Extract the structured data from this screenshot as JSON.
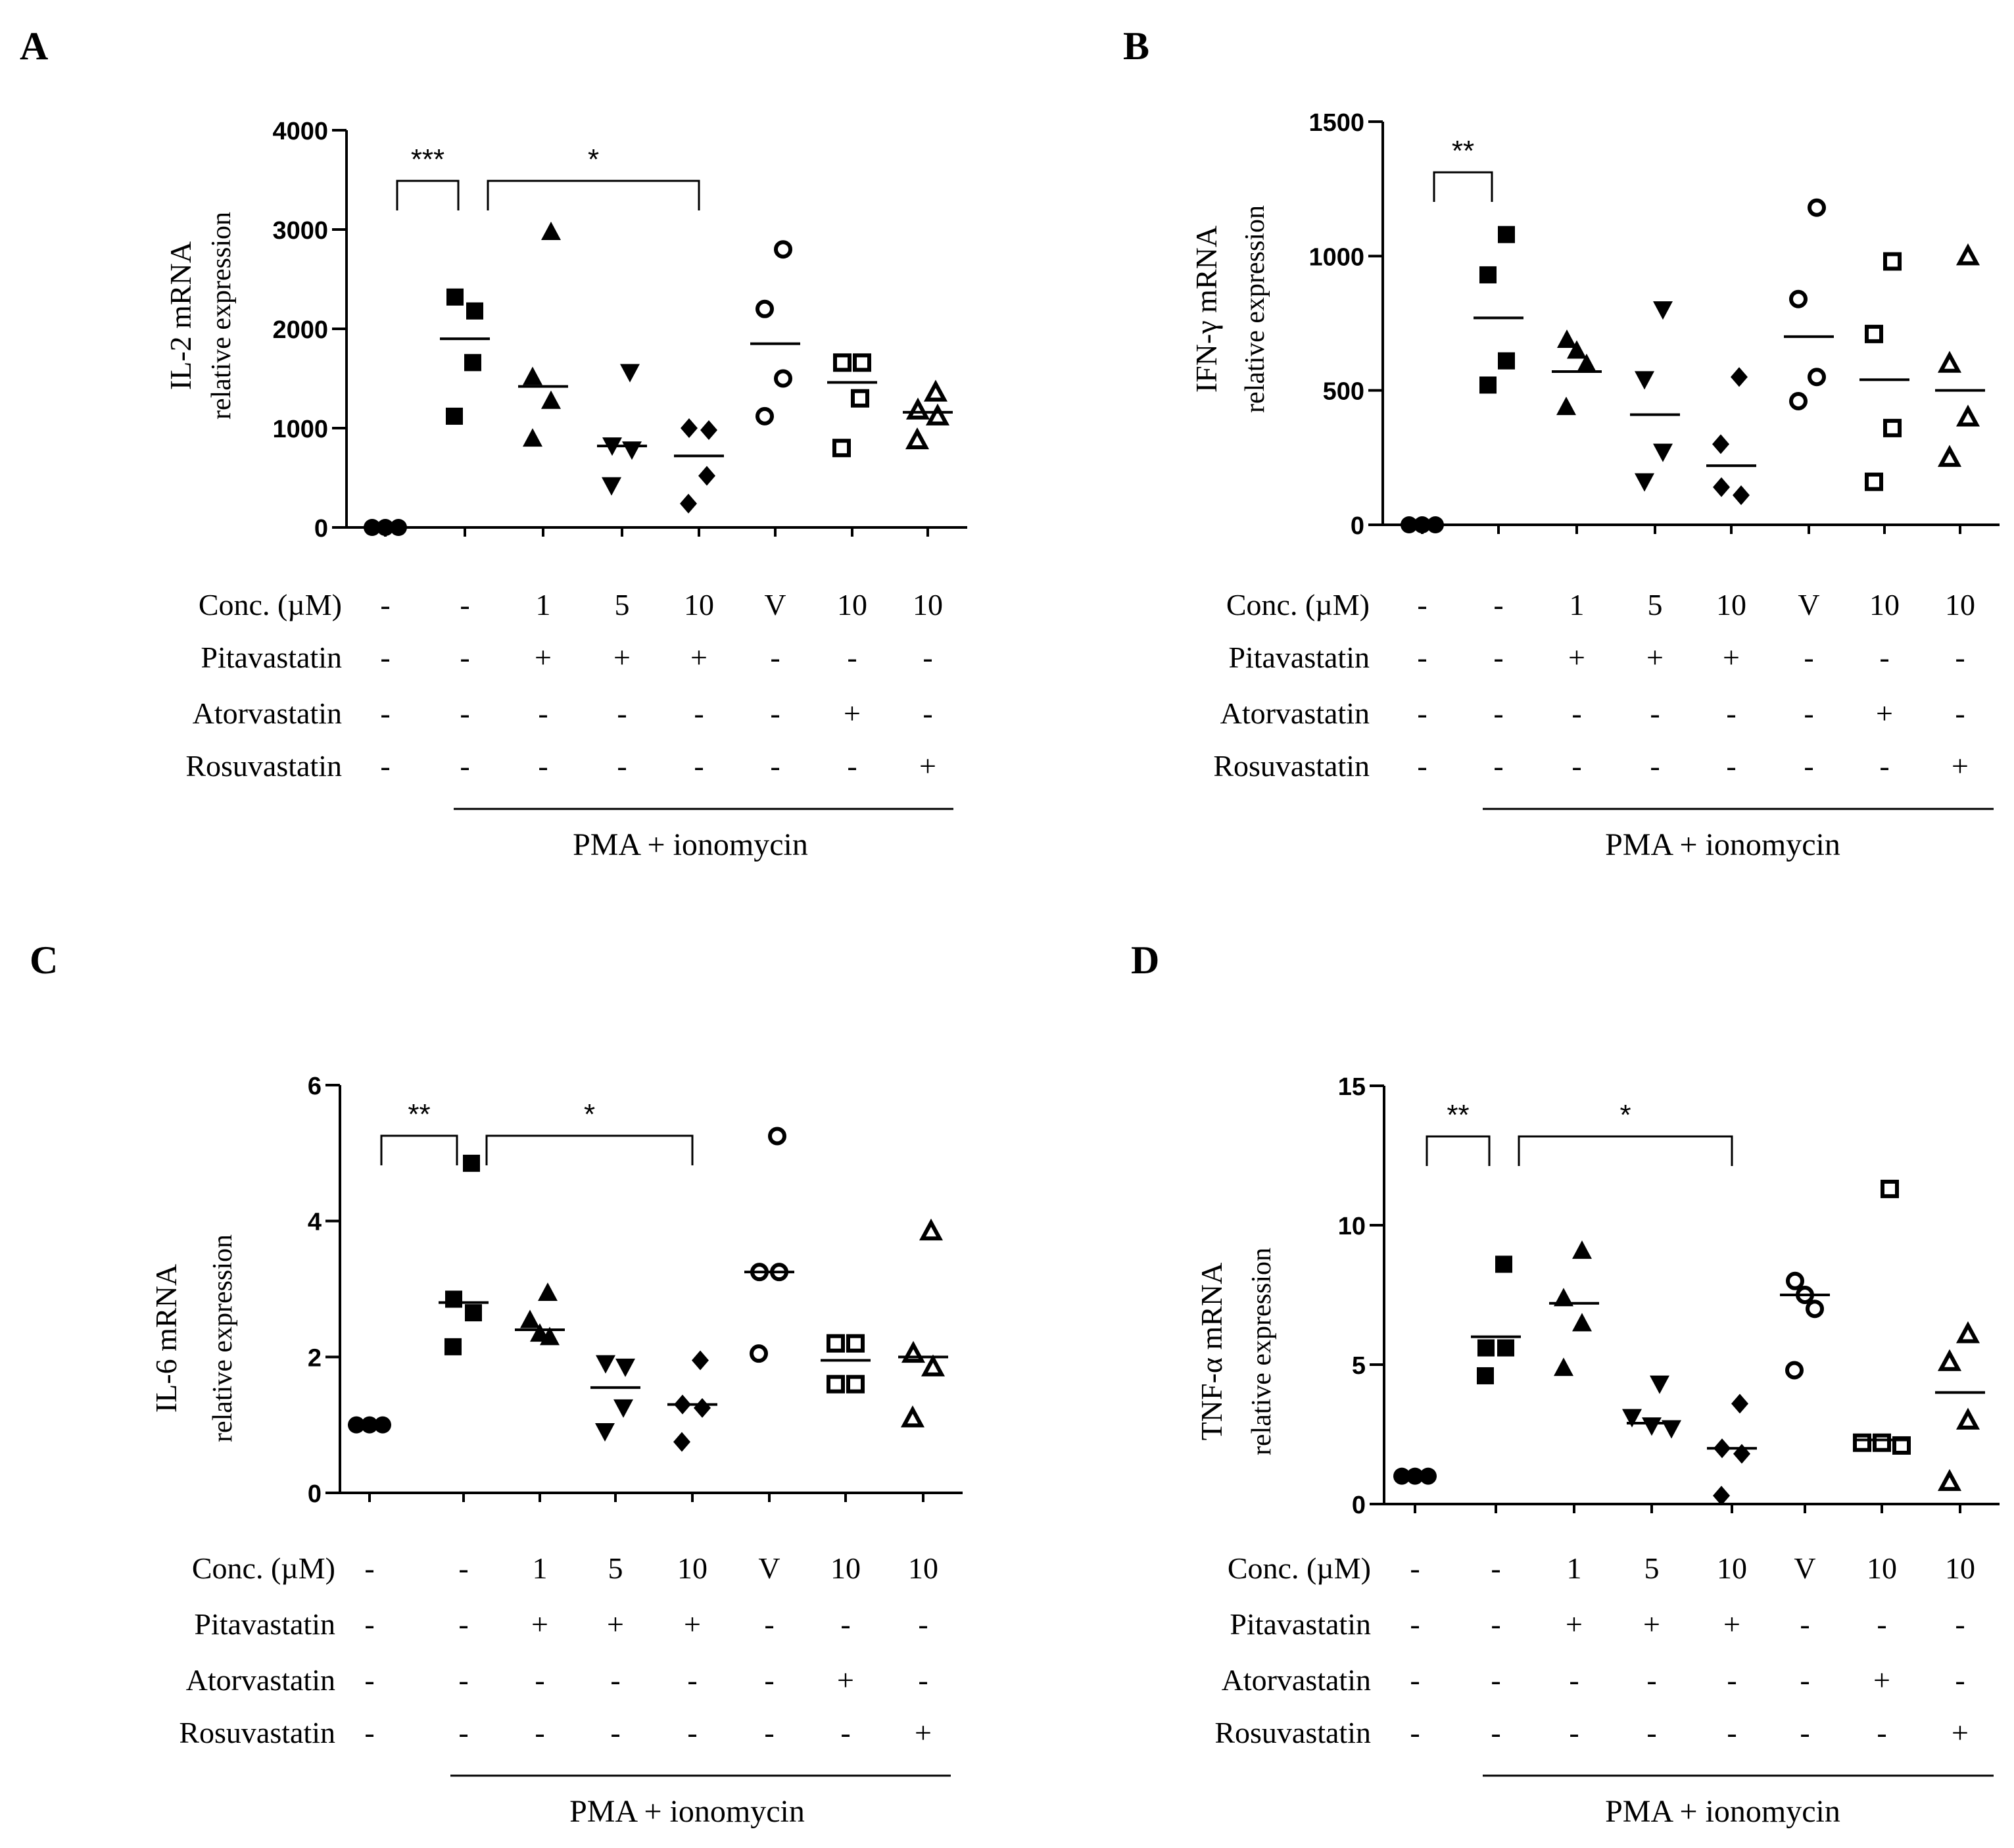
{
  "figure": {
    "shared_rows": {
      "labels": [
        "Conc. (µM)",
        "Pitavastatin",
        "Atorvastatin",
        "Rosuvastatin"
      ],
      "conc": [
        "-",
        "-",
        "1",
        "5",
        "10",
        "V",
        "10",
        "10"
      ],
      "pitavastatin": [
        "-",
        "-",
        "+",
        "+",
        "+",
        "-",
        "-",
        "-"
      ],
      "atorvastatin": [
        "-",
        "-",
        "-",
        "-",
        "-",
        "-",
        "+",
        "-"
      ],
      "rosuvastatin": [
        "-",
        "-",
        "-",
        "-",
        "-",
        "-",
        "-",
        "+"
      ],
      "group_label": "PMA + ionomycin"
    }
  },
  "chart_data": [
    {
      "type": "scatter",
      "panel": "A",
      "ylabel": "IL-2 mRNA",
      "ylabel2": "relative  expression",
      "ylim": [
        0,
        4000
      ],
      "yticks": [
        0,
        1000,
        2000,
        3000,
        4000
      ],
      "groups": [
        {
          "name": "control",
          "marker": "circle-filled",
          "values": [
            0,
            0,
            0
          ],
          "mean": null
        },
        {
          "name": "PMA+ionomycin",
          "marker": "square-filled",
          "values": [
            2320,
            2180,
            1660,
            1120
          ],
          "mean": 1900
        },
        {
          "name": "Pitavastatin 1",
          "marker": "triangle-up-filled",
          "values": [
            2980,
            1520,
            1280,
            900
          ],
          "mean": 1420
        },
        {
          "name": "Pitavastatin 5",
          "marker": "triangle-down-filled",
          "values": [
            1560,
            820,
            780,
            420
          ],
          "mean": 820
        },
        {
          "name": "Pitavastatin 10",
          "marker": "diamond-filled",
          "values": [
            1000,
            980,
            520,
            240
          ],
          "mean": 720
        },
        {
          "name": "Vehicle",
          "marker": "circle-open",
          "values": [
            2800,
            2200,
            1500,
            1120
          ],
          "mean": 1850
        },
        {
          "name": "Atorvastatin 10",
          "marker": "square-open",
          "values": [
            1660,
            1660,
            1300,
            800
          ],
          "mean": 1460
        },
        {
          "name": "Rosuvastatin 10",
          "marker": "triangle-up-open",
          "values": [
            1360,
            1180,
            1120,
            880
          ],
          "mean": 1160
        }
      ],
      "significance": [
        {
          "from": 0,
          "to": 1,
          "label": "***"
        },
        {
          "from": 1,
          "to": 4,
          "label": "*"
        }
      ]
    },
    {
      "type": "scatter",
      "panel": "B",
      "ylabel": "IFN-γ mRNA",
      "ylabel2": "relative  expression",
      "ylim": [
        0,
        1500
      ],
      "yticks": [
        0,
        500,
        1000,
        1500
      ],
      "groups": [
        {
          "name": "control",
          "marker": "circle-filled",
          "values": [
            0,
            0,
            0
          ],
          "mean": null
        },
        {
          "name": "PMA+ionomycin",
          "marker": "square-filled",
          "values": [
            1080,
            930,
            610,
            520
          ],
          "mean": 770
        },
        {
          "name": "Pitavastatin 1",
          "marker": "triangle-up-filled",
          "values": [
            690,
            650,
            600,
            440
          ],
          "mean": 570
        },
        {
          "name": "Pitavastatin 5",
          "marker": "triangle-down-filled",
          "values": [
            800,
            540,
            270,
            160
          ],
          "mean": 410
        },
        {
          "name": "Pitavastatin 10",
          "marker": "diamond-filled",
          "values": [
            550,
            300,
            140,
            110
          ],
          "mean": 220
        },
        {
          "name": "Vehicle",
          "marker": "circle-open",
          "values": [
            1180,
            840,
            550,
            460
          ],
          "mean": 700
        },
        {
          "name": "Atorvastatin 10",
          "marker": "square-open",
          "values": [
            980,
            710,
            360,
            160
          ],
          "mean": 540
        },
        {
          "name": "Rosuvastatin 10",
          "marker": "triangle-up-open",
          "values": [
            1000,
            600,
            400,
            250
          ],
          "mean": 500
        }
      ],
      "significance": [
        {
          "from": 0,
          "to": 1,
          "label": "**"
        }
      ]
    },
    {
      "type": "scatter",
      "panel": "C",
      "ylabel": "IL-6 mRNA",
      "ylabel2": "relative  expression",
      "ylim": [
        0,
        6
      ],
      "yticks": [
        0,
        2,
        4,
        6
      ],
      "groups": [
        {
          "name": "control",
          "marker": "circle-filled",
          "values": [
            1,
            1,
            1
          ],
          "mean": null
        },
        {
          "name": "PMA+ionomycin",
          "marker": "square-filled",
          "values": [
            4.85,
            2.85,
            2.65,
            2.15
          ],
          "mean": 2.8
        },
        {
          "name": "Pitavastatin 1",
          "marker": "triangle-up-filled",
          "values": [
            2.95,
            2.55,
            2.35,
            2.3
          ],
          "mean": 2.4
        },
        {
          "name": "Pitavastatin 5",
          "marker": "triangle-down-filled",
          "values": [
            1.9,
            1.85,
            1.25,
            0.9
          ],
          "mean": 1.55
        },
        {
          "name": "Pitavastatin 10",
          "marker": "diamond-filled",
          "values": [
            1.95,
            1.3,
            1.25,
            0.75
          ],
          "mean": 1.3
        },
        {
          "name": "Vehicle",
          "marker": "circle-open",
          "values": [
            5.25,
            3.25,
            3.25,
            2.05
          ],
          "mean": 3.25
        },
        {
          "name": "Atorvastatin 10",
          "marker": "square-open",
          "values": [
            2.2,
            2.2,
            1.6,
            1.6
          ],
          "mean": 1.95
        },
        {
          "name": "Rosuvastatin 10",
          "marker": "triangle-up-open",
          "values": [
            3.85,
            2.05,
            1.85,
            1.1
          ],
          "mean": 2.0
        }
      ],
      "significance": [
        {
          "from": 0,
          "to": 1,
          "label": "**"
        },
        {
          "from": 1,
          "to": 4,
          "label": "*"
        }
      ]
    },
    {
      "type": "scatter",
      "panel": "D",
      "ylabel": "TNF-α mRNA",
      "ylabel2": "relative  expression",
      "ylim": [
        0,
        15
      ],
      "yticks": [
        0,
        5,
        10,
        15
      ],
      "groups": [
        {
          "name": "control",
          "marker": "circle-filled",
          "values": [
            1,
            1,
            1
          ],
          "mean": null
        },
        {
          "name": "PMA+ionomycin",
          "marker": "square-filled",
          "values": [
            8.6,
            5.6,
            5.6,
            4.6
          ],
          "mean": 6.0
        },
        {
          "name": "Pitavastatin 1",
          "marker": "triangle-up-filled",
          "values": [
            9.1,
            7.4,
            6.5,
            4.9
          ],
          "mean": 7.2
        },
        {
          "name": "Pitavastatin 5",
          "marker": "triangle-down-filled",
          "values": [
            4.3,
            3.1,
            2.8,
            2.7
          ],
          "mean": 2.9
        },
        {
          "name": "Pitavastatin 10",
          "marker": "diamond-filled",
          "values": [
            3.6,
            2.0,
            1.8,
            0.3
          ],
          "mean": 2.0
        },
        {
          "name": "Vehicle",
          "marker": "circle-open",
          "values": [
            8.0,
            7.5,
            7.0,
            4.8
          ],
          "mean": 7.5
        },
        {
          "name": "Atorvastatin 10",
          "marker": "square-open",
          "values": [
            11.3,
            2.2,
            2.2,
            2.1
          ],
          "mean": 2.3
        },
        {
          "name": "Rosuvastatin 10",
          "marker": "triangle-up-open",
          "values": [
            6.1,
            5.1,
            3.0,
            0.8
          ],
          "mean": 4.0
        }
      ],
      "significance": [
        {
          "from": 0,
          "to": 1,
          "label": "**"
        },
        {
          "from": 1,
          "to": 4,
          "label": "*"
        }
      ]
    }
  ]
}
